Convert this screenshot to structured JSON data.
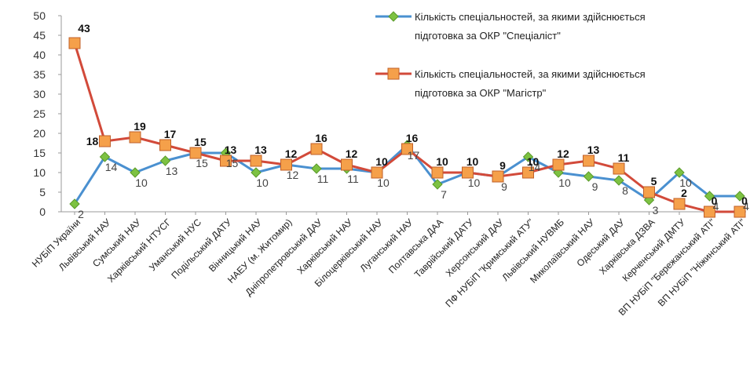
{
  "chart_data": {
    "type": "line",
    "ylim": [
      0,
      50
    ],
    "yticks": [
      0,
      5,
      10,
      15,
      20,
      25,
      30,
      35,
      40,
      45,
      50
    ],
    "grid": false,
    "legend_position": "top-right",
    "categories": [
      "НУБіП України",
      "Львівський НАУ",
      "Сумський НАУ",
      "Харківський НТУСГ",
      "Уманський НУС",
      "Подільський ДАТУ",
      "Вінницький НАУ",
      "НАЕУ (м. Житомир)",
      "Дніпропетровський ДАУ",
      "Харківський НАУ",
      "Білоцерківський НАУ",
      "Луганський НАУ",
      "Полтавська ДАА",
      "Таврійський ДАТУ",
      "Херсонський ДАУ",
      "ПФ НУБіП \"Кримський АТУ\"",
      "Львівський НУВМБ",
      "Миколаївський НАУ",
      "Одеський ДАУ",
      "Харківська ДЗВА",
      "Керченський ДМТУ",
      "ВП НУБіП \"Бережанський АТІ\"",
      "ВП НУБіП \"Ніжинський АТІ\""
    ],
    "series": [
      {
        "name": "Кількість спеціальностей, за якими здійснюється підготовка за ОКР \"Спеціаліст\"",
        "legend_lines": [
          "Кількість спеціальностей, за якими здійснюється",
          "підготовка за ОКР \"Спеціаліст\""
        ],
        "color": "#4a90d0",
        "marker_color": "#7dc242",
        "marker": "diamond",
        "values": [
          2,
          14,
          10,
          13,
          15,
          15,
          10,
          12,
          11,
          11,
          10,
          17,
          7,
          10,
          9,
          14,
          10,
          9,
          8,
          3,
          10,
          4,
          4
        ],
        "labels": [
          "2",
          "14",
          "10",
          "13",
          "15",
          "15",
          "10",
          "12",
          "11",
          "11",
          "10",
          "17",
          "7",
          "10",
          "9",
          "14",
          "10",
          "9",
          "8",
          "3",
          "10",
          "4",
          "4"
        ]
      },
      {
        "name": "Кількість спеціальностей, за якими здійснюється підготовка за ОКР \"Магістр\"",
        "legend_lines": [
          "Кількість спеціальностей, за якими здійснюється",
          "підготовка за ОКР \"Магістр\""
        ],
        "color": "#d24a3a",
        "marker_color": "#f5a04a",
        "marker": "square",
        "values": [
          43,
          18,
          19,
          17,
          15,
          13,
          13,
          12,
          16,
          12,
          10,
          16,
          10,
          10,
          9,
          10,
          12,
          13,
          11,
          5,
          2,
          0,
          0
        ],
        "labels": [
          "43",
          "18",
          "19",
          "17",
          "15",
          "13",
          "13",
          "12",
          "16",
          "12",
          "10",
          "16",
          "10",
          "10",
          "9",
          "10",
          "12",
          "13",
          "11",
          "5",
          "2",
          "0",
          "0"
        ]
      }
    ]
  }
}
